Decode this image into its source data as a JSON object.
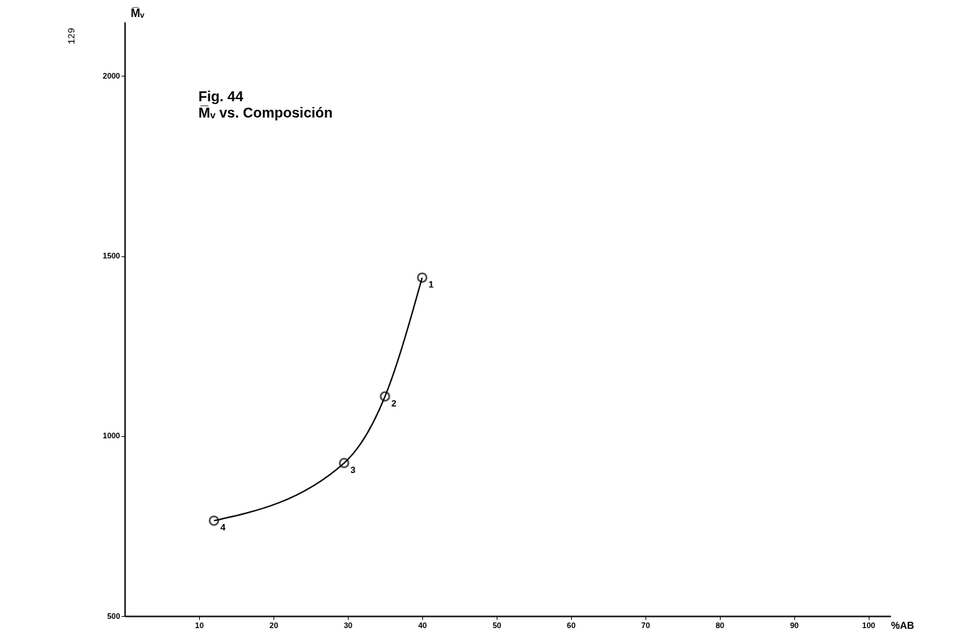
{
  "chart_data": {
    "type": "line",
    "title": "Fig. 44",
    "subtitle": "M̅ᵥ vs. Composición",
    "xlabel": "%AB",
    "ylabel": "M̅ᵥ",
    "x": [
      12,
      29.5,
      35,
      40
    ],
    "series": [
      {
        "color": "#000000",
        "values": [
          765,
          925,
          1110,
          1440
        ]
      }
    ],
    "xlim": [
      0,
      103
    ],
    "xticks": [
      10,
      20,
      30,
      40,
      50,
      60,
      70,
      80,
      90,
      100
    ],
    "ylim": [
      500,
      2150
    ],
    "yticks": [
      500,
      1000,
      1500,
      2000
    ],
    "grid": false,
    "marker": "circle",
    "line_style": "solid",
    "annotations": [
      "129",
      {
        "text": "1",
        "x": 40,
        "y": 1440
      },
      {
        "text": "2",
        "x": 35,
        "y": 1110
      },
      {
        "text": "3",
        "x": 29.5,
        "y": 925
      },
      {
        "text": "4",
        "x": 12,
        "y": 765
      }
    ]
  }
}
